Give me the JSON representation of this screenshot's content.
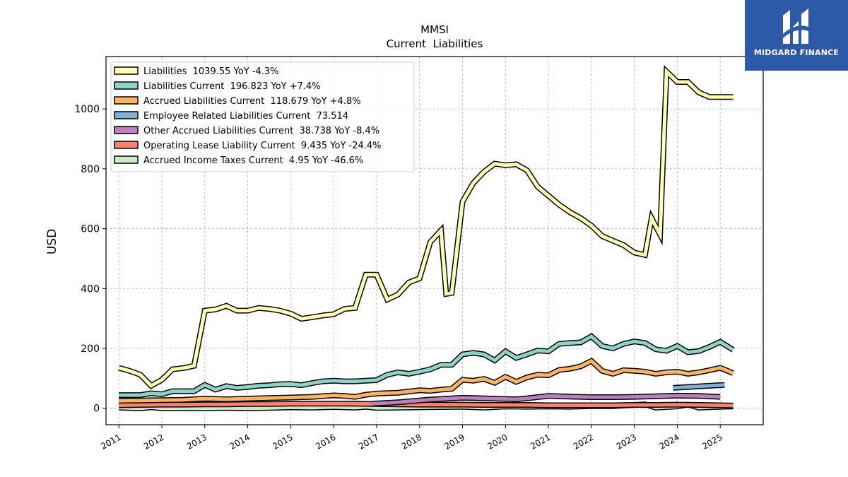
{
  "brand": {
    "name": "MIDGARD FINANCE",
    "color": "#2c5aa8",
    "icon": "midgard-logo-icon"
  },
  "chart_data": {
    "type": "line",
    "title": "MMSI",
    "subtitle": "Current  Liabilities",
    "ylabel": "USD",
    "xlabel": "",
    "xlim": [
      2010.7,
      2026.0
    ],
    "ylim": [
      -55,
      1175
    ],
    "yticks": [
      0,
      200,
      400,
      600,
      800,
      1000
    ],
    "xticks": [
      "2011",
      "2012",
      "2013",
      "2014",
      "2015",
      "2016",
      "2017",
      "2018",
      "2019",
      "2020",
      "2021",
      "2022",
      "2023",
      "2024",
      "2025"
    ],
    "grid": true,
    "legend_position": "top-left",
    "series": [
      {
        "name": "Liabilities",
        "legend": "Liabilities  1039.55 YoY -4.3%",
        "color": "#ffffb3",
        "x": [
          2011.0,
          2011.25,
          2011.5,
          2011.75,
          2012.0,
          2012.25,
          2012.5,
          2012.75,
          2013.0,
          2013.25,
          2013.5,
          2013.75,
          2014.0,
          2014.25,
          2014.5,
          2014.75,
          2015.0,
          2015.25,
          2015.5,
          2015.75,
          2016.0,
          2016.25,
          2016.5,
          2016.75,
          2017.0,
          2017.25,
          2017.5,
          2017.75,
          2018.0,
          2018.25,
          2018.5,
          2018.62,
          2018.75,
          2019.0,
          2019.25,
          2019.5,
          2019.75,
          2020.0,
          2020.25,
          2020.5,
          2020.75,
          2021.0,
          2021.25,
          2021.5,
          2021.75,
          2022.0,
          2022.25,
          2022.5,
          2022.75,
          2023.0,
          2023.25,
          2023.4,
          2023.6,
          2023.75,
          2024.0,
          2024.25,
          2024.5,
          2024.75,
          2025.0,
          2025.3
        ],
        "y": [
          135,
          125,
          112,
          75,
          95,
          130,
          134,
          142,
          326,
          330,
          342,
          326,
          326,
          335,
          332,
          326,
          316,
          299,
          304,
          310,
          314,
          332,
          335,
          446,
          446,
          363,
          380,
          420,
          434,
          555,
          594,
          382,
          385,
          690,
          752,
          790,
          817,
          812,
          815,
          795,
          740,
          710,
          680,
          655,
          635,
          610,
          575,
          560,
          545,
          520,
          512,
          635,
          580,
          1125,
          1090,
          1090,
          1055,
          1040,
          1040,
          1040
        ]
      },
      {
        "name": "Liabilities Current",
        "legend": "Liabilities Current  196.823 YoY +7.4%",
        "color": "#8dd3c7",
        "x": [
          2011.0,
          2011.25,
          2011.5,
          2011.75,
          2012.0,
          2012.25,
          2012.5,
          2012.75,
          2013.0,
          2013.25,
          2013.5,
          2013.75,
          2014.0,
          2014.25,
          2014.5,
          2014.75,
          2015.0,
          2015.25,
          2015.5,
          2015.75,
          2016.0,
          2016.25,
          2016.5,
          2016.75,
          2017.0,
          2017.25,
          2017.5,
          2017.75,
          2018.0,
          2018.25,
          2018.5,
          2018.75,
          2019.0,
          2019.25,
          2019.5,
          2019.75,
          2020.0,
          2020.25,
          2020.5,
          2020.75,
          2021.0,
          2021.25,
          2021.5,
          2021.75,
          2022.0,
          2022.25,
          2022.5,
          2022.75,
          2023.0,
          2023.25,
          2023.5,
          2023.75,
          2024.0,
          2024.25,
          2024.5,
          2024.75,
          2025.0,
          2025.3
        ],
        "y": [
          44,
          44,
          44,
          50,
          47,
          57,
          57,
          57,
          78,
          62,
          74,
          68,
          71,
          75,
          77,
          80,
          81,
          77,
          84,
          90,
          92,
          90,
          90,
          92,
          94,
          112,
          120,
          115,
          122,
          130,
          145,
          145,
          180,
          185,
          180,
          160,
          190,
          168,
          180,
          193,
          190,
          215,
          218,
          220,
          240,
          208,
          200,
          215,
          223,
          218,
          197,
          192,
          208,
          187,
          191,
          205,
          222,
          195
        ]
      },
      {
        "name": "Accrued Liabilities Current",
        "legend": "Accrued Liabilities Current  118.679 YoY +4.8%",
        "color": "#fdb462",
        "x": [
          2011.0,
          2011.5,
          2012.0,
          2012.5,
          2013.0,
          2013.5,
          2014.0,
          2014.5,
          2015.0,
          2015.5,
          2016.0,
          2016.25,
          2016.5,
          2016.75,
          2017.0,
          2017.5,
          2018.0,
          2018.25,
          2018.5,
          2018.75,
          2019.0,
          2019.25,
          2019.5,
          2019.75,
          2020.0,
          2020.25,
          2020.5,
          2020.75,
          2021.0,
          2021.25,
          2021.5,
          2021.75,
          2022.0,
          2022.25,
          2022.5,
          2022.75,
          2023.0,
          2023.25,
          2023.5,
          2023.75,
          2024.0,
          2024.25,
          2024.5,
          2024.75,
          2025.0,
          2025.3
        ],
        "y": [
          25,
          26,
          27,
          28,
          32,
          30,
          32,
          34,
          36,
          38,
          43,
          41,
          38,
          45,
          49,
          52,
          60,
          58,
          62,
          65,
          95,
          92,
          98,
          85,
          105,
          88,
          103,
          112,
          110,
          128,
          132,
          140,
          158,
          125,
          115,
          127,
          125,
          122,
          115,
          120,
          122,
          115,
          120,
          127,
          135,
          117
        ]
      },
      {
        "name": "Employee Related Liabilities Current",
        "legend": "Employee Related Liabilities Current  73.514",
        "color": "#80b1d3",
        "x": [
          2023.9,
          2025.1
        ],
        "y": [
          68,
          78
        ]
      },
      {
        "name": "Other Accrued Liabilities Current",
        "legend": "Other Accrued Liabilities Current  38.738 YoY -8.4%",
        "color": "#bc80bd",
        "x": [
          2016.9,
          2017.25,
          2017.5,
          2017.75,
          2018.0,
          2018.25,
          2018.5,
          2018.75,
          2019.0,
          2019.25,
          2019.5,
          2019.75,
          2020.0,
          2020.25,
          2020.5,
          2020.75,
          2021.0,
          2021.25,
          2021.5,
          2021.75,
          2022.0,
          2022.5,
          2023.0,
          2023.5,
          2024.0,
          2024.5,
          2025.0
        ],
        "y": [
          15,
          18,
          20,
          23,
          26,
          29,
          31,
          33,
          35,
          34,
          33,
          32,
          31,
          30,
          33,
          37,
          41,
          40,
          39,
          38,
          37,
          37,
          38,
          40,
          42,
          41,
          38
        ]
      },
      {
        "name": "Operating Lease Liability Current",
        "legend": "Operating Lease Liability Current  9.435 YoY -24.4%",
        "color": "#fb8072",
        "x": [
          2011.0,
          2011.5,
          2012.0,
          2012.5,
          2013.0,
          2013.5,
          2014.0,
          2014.5,
          2015.0,
          2015.5,
          2016.0,
          2016.5,
          2017.0,
          2017.5,
          2018.0,
          2018.5,
          2019.0,
          2019.5,
          2020.0,
          2020.5,
          2021.0,
          2021.5,
          2022.0,
          2022.5,
          2023.0,
          2023.5,
          2024.0,
          2024.5,
          2025.0,
          2025.3
        ],
        "y": [
          10,
          11,
          12,
          12,
          13,
          13,
          14,
          14,
          15,
          15,
          15,
          15,
          14,
          13,
          12,
          12,
          12,
          11,
          11,
          11,
          10,
          10,
          10,
          10,
          11,
          11,
          12,
          11,
          10,
          9
        ]
      },
      {
        "name": "Accrued Income Taxes Current",
        "legend": "Accrued Income Taxes Current  4.95 YoY -46.6%",
        "color": "#ccebc5",
        "x": [
          2011.0,
          2011.5,
          2011.75,
          2012.0,
          2012.5,
          2013.0,
          2013.5,
          2014.0,
          2014.5,
          2015.0,
          2015.5,
          2016.0,
          2016.5,
          2016.75,
          2017.0,
          2017.5,
          2018.0,
          2018.5,
          2019.0,
          2019.5,
          2020.0,
          2020.5,
          2021.0,
          2021.5,
          2022.0,
          2022.5,
          2023.0,
          2023.25,
          2023.5,
          2024.0,
          2024.25,
          2024.5,
          2025.0,
          2025.3
        ],
        "y": [
          2,
          0,
          3,
          0,
          0,
          0,
          1,
          0,
          1,
          3,
          2,
          4,
          2,
          5,
          1,
          2,
          3,
          4,
          5,
          2,
          6,
          5,
          6,
          5,
          7,
          7,
          11,
          13,
          2,
          6,
          12,
          2,
          5,
          6
        ]
      }
    ]
  }
}
